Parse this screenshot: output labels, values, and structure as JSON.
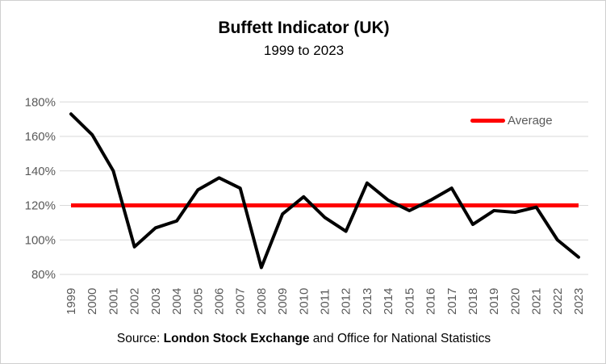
{
  "page": {
    "source": {
      "prefix": "Source: ",
      "bold": "London Stock Exchange",
      "suffix": " and Office for National Statistics"
    }
  },
  "chart_data": {
    "type": "line",
    "title": "Buffett Indicator (UK)",
    "subtitle": "1999 to 2023",
    "categories": [
      1999,
      2000,
      2001,
      2002,
      2003,
      2004,
      2005,
      2006,
      2007,
      2008,
      2009,
      2010,
      2011,
      2012,
      2013,
      2014,
      2015,
      2016,
      2017,
      2018,
      2019,
      2020,
      2021,
      2022,
      2023
    ],
    "series": [
      {
        "name": "Buffett Indicator (UK)",
        "color": "#000000",
        "values": [
          173,
          161,
          140,
          96,
          107,
          111,
          129,
          136,
          130,
          84,
          115,
          125,
          113,
          105,
          133,
          123,
          117,
          123,
          130,
          109,
          117,
          116,
          119,
          100,
          90
        ]
      }
    ],
    "reference_line": {
      "label": "Average",
      "value": 120,
      "color": "#ff0000"
    },
    "yticks": [
      80,
      100,
      120,
      140,
      160,
      180
    ],
    "ytick_suffix": "%",
    "ylim": [
      80,
      180
    ],
    "grid": true,
    "legend": {
      "position": "top-right",
      "entries": [
        {
          "label": "Average",
          "color": "#ff0000"
        }
      ]
    },
    "colors": {
      "axis_text": "#595959",
      "gridline": "#d9d9d9",
      "background": "#ffffff"
    }
  }
}
